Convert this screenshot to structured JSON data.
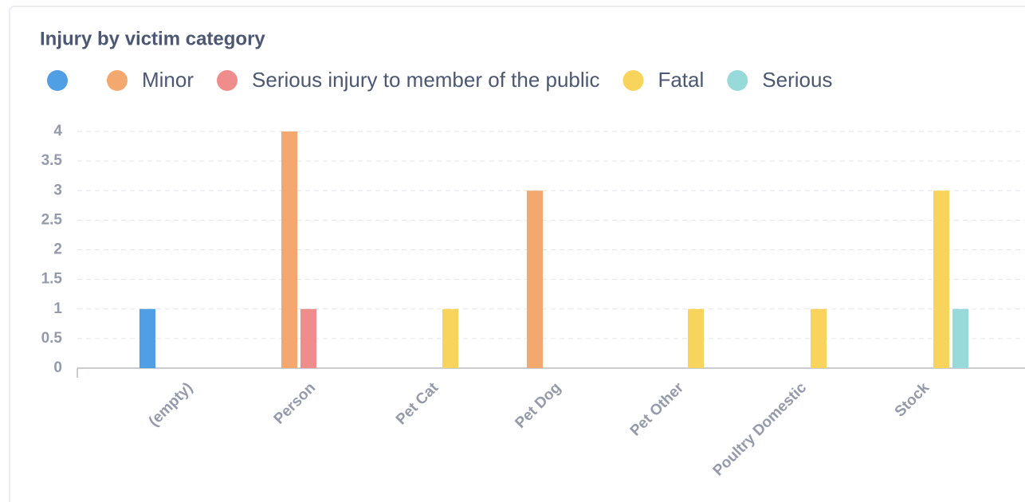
{
  "chart_data": {
    "type": "bar",
    "title": "Injury by victim category",
    "categories": [
      "(empty)",
      "Person",
      "Pet Cat",
      "Pet Dog",
      "Pet Other",
      "Poultry Domestic",
      "Stock"
    ],
    "series": [
      {
        "name": null,
        "color": "#509ee3",
        "values": [
          1,
          null,
          null,
          null,
          null,
          null,
          null
        ]
      },
      {
        "name": "Minor",
        "color": "#f2a86f",
        "values": [
          null,
          4,
          null,
          3,
          null,
          null,
          null
        ]
      },
      {
        "name": "Serious injury to member of the public",
        "color": "#ef8c8c",
        "values": [
          null,
          1,
          null,
          null,
          null,
          null,
          null
        ]
      },
      {
        "name": "Fatal",
        "color": "#f9d45c",
        "values": [
          null,
          null,
          1,
          null,
          1,
          1,
          3
        ]
      },
      {
        "name": "Serious",
        "color": "#98d9d9",
        "values": [
          null,
          null,
          null,
          null,
          null,
          null,
          1
        ]
      }
    ],
    "ylim": [
      0,
      4
    ],
    "yticks": [
      0,
      0.5,
      1,
      1.5,
      2,
      2.5,
      3,
      3.5,
      4
    ],
    "grid": true,
    "legend": "top"
  }
}
